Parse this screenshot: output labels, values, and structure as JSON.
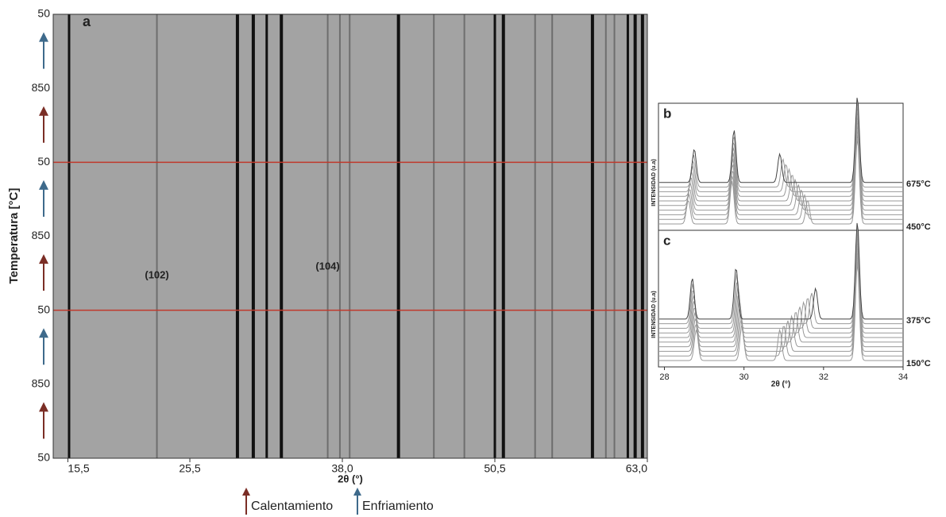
{
  "chart_data": [
    {
      "type": "xrd-map",
      "panel": "a",
      "x_label": "2θ (°)",
      "y_label": "Temperatura [°C]",
      "xlim": [
        14.3,
        63.0
      ],
      "xticks": [
        {
          "value": 15.5,
          "label": "15,5"
        },
        {
          "value": 25.5,
          "label": "25,5"
        },
        {
          "value": 38.0,
          "label": "38,0"
        },
        {
          "value": 50.5,
          "label": "50,5"
        },
        {
          "value": 63.0,
          "label": "63,0"
        }
      ],
      "y_categories": [
        "50",
        "850",
        "50",
        "850",
        "50",
        "850",
        "50"
      ],
      "peaks": [
        15.6,
        29.4,
        30.7,
        31.8,
        33.0,
        42.6,
        50.5,
        51.2,
        58.5,
        61.4,
        62.0,
        62.6
      ],
      "weak_peaks": [
        22.8,
        36.8,
        37.8,
        38.6,
        45.5,
        48.0,
        53.8,
        55.2,
        59.6,
        60.3
      ],
      "annotations": [
        "(102)",
        "(104)"
      ],
      "annotation_x": [
        22.8,
        36.8
      ],
      "series": [
        {
          "name": "Calentamiento",
          "color": "#7b2e26"
        },
        {
          "name": "Enfriamiento",
          "color": "#3e6a8b"
        }
      ],
      "boundary_color": "#c0392b"
    },
    {
      "type": "stacked-lines",
      "panel": "b",
      "y_label": "INTENSIDAD (u.a)",
      "xlim": [
        27.85,
        34.0
      ],
      "ylim": [
        0,
        1
      ],
      "n_traces": 10,
      "top_label": "675°C",
      "bottom_label": "450°C",
      "peaks_start": [
        28.6,
        29.7,
        31.6,
        32.85
      ],
      "peaks_end": [
        28.75,
        29.75,
        30.9,
        32.85
      ],
      "heights_start": [
        0.25,
        0.45,
        0.25,
        0.9
      ],
      "heights_end": [
        0.35,
        0.55,
        0.3,
        0.9
      ]
    },
    {
      "type": "stacked-lines",
      "panel": "c",
      "y_label": "INTENSIDAD (u.a)",
      "x_label": "2θ (°)",
      "xlim": [
        27.85,
        34.0
      ],
      "ylim": [
        0,
        1
      ],
      "xticks": [
        28,
        30,
        32,
        34
      ],
      "n_traces": 10,
      "top_label": "375°C",
      "bottom_label": "150°C",
      "peaks_start": [
        28.8,
        29.95,
        30.9,
        32.85
      ],
      "peaks_end": [
        28.7,
        29.8,
        31.8,
        32.85
      ],
      "heights_start": [
        0.3,
        0.35,
        0.3,
        0.95
      ],
      "heights_end": [
        0.4,
        0.5,
        0.3,
        0.95
      ]
    }
  ]
}
